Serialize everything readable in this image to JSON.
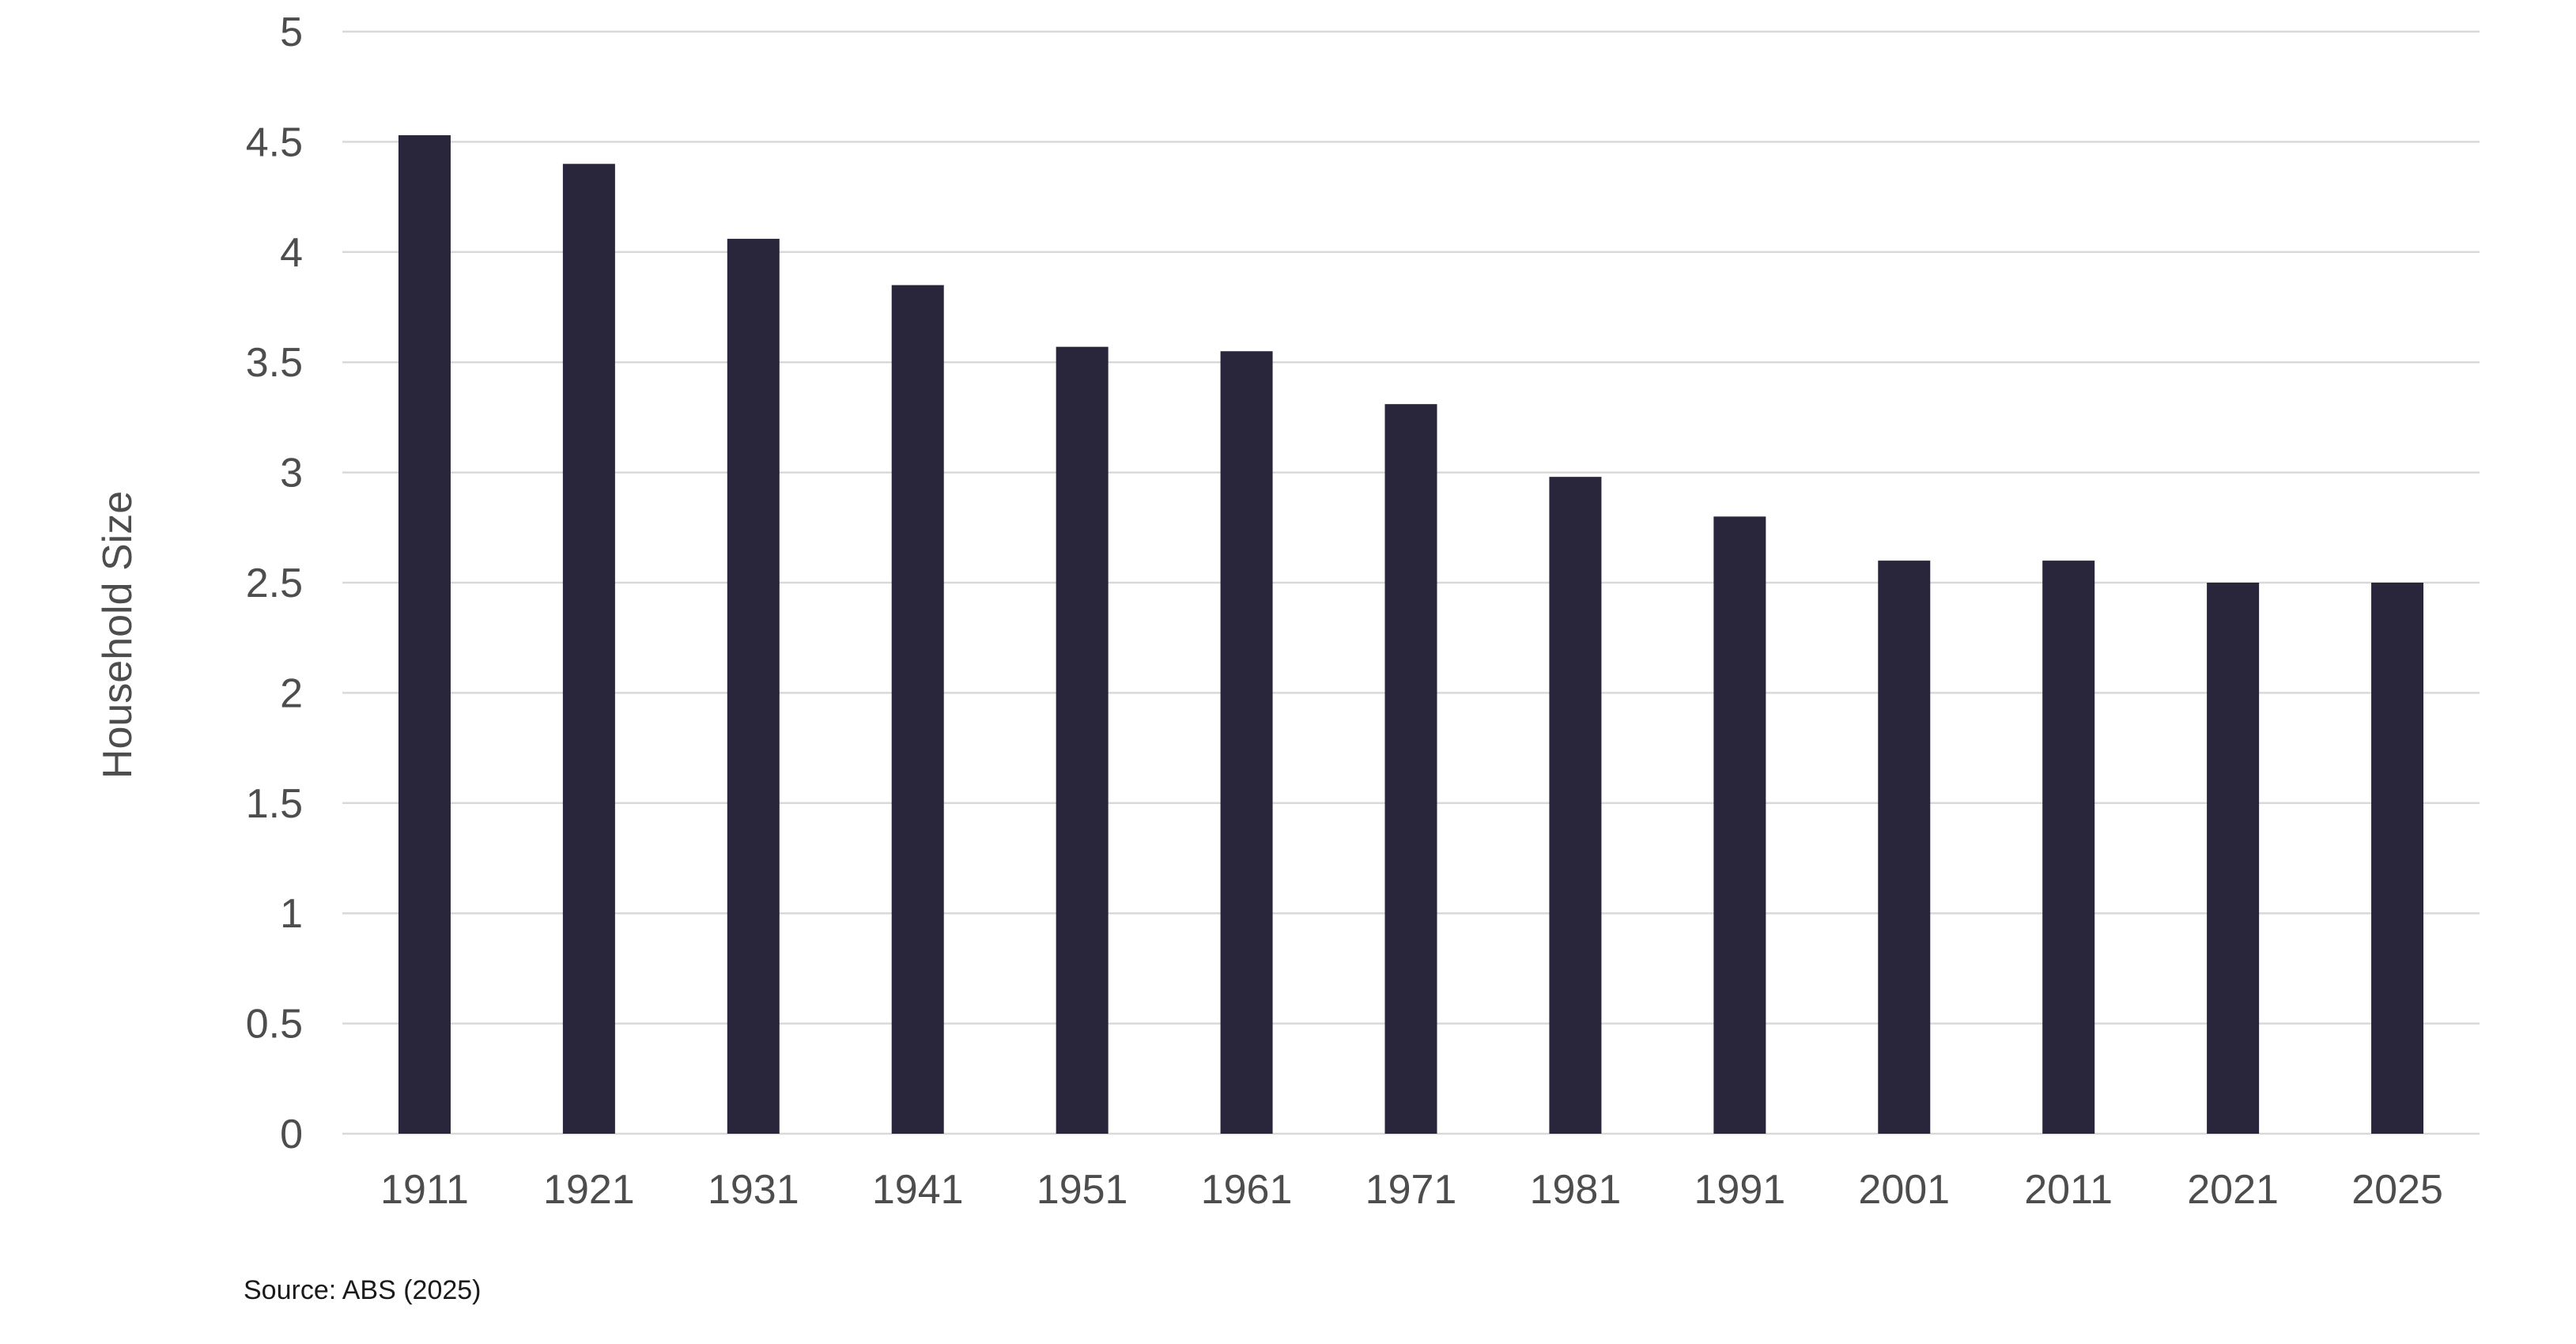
{
  "chart_data": {
    "type": "bar",
    "title": "",
    "xlabel": "",
    "ylabel": "Household Size",
    "categories": [
      "1911",
      "1921",
      "1931",
      "1941",
      "1951",
      "1961",
      "1971",
      "1981",
      "1991",
      "2001",
      "2011",
      "2021",
      "2025"
    ],
    "values": [
      4.53,
      4.4,
      4.06,
      3.85,
      3.57,
      3.55,
      3.31,
      2.98,
      2.8,
      2.6,
      2.6,
      2.5,
      2.5
    ],
    "ylim": [
      0,
      5
    ],
    "yticks": [
      "0",
      "0.5",
      "1",
      "1.5",
      "2",
      "2.5",
      "3",
      "3.5",
      "4",
      "4.5",
      "5"
    ],
    "grid": true,
    "legend": "none",
    "bar_color": "#29263b",
    "note": "Source: ABS (2025)"
  }
}
